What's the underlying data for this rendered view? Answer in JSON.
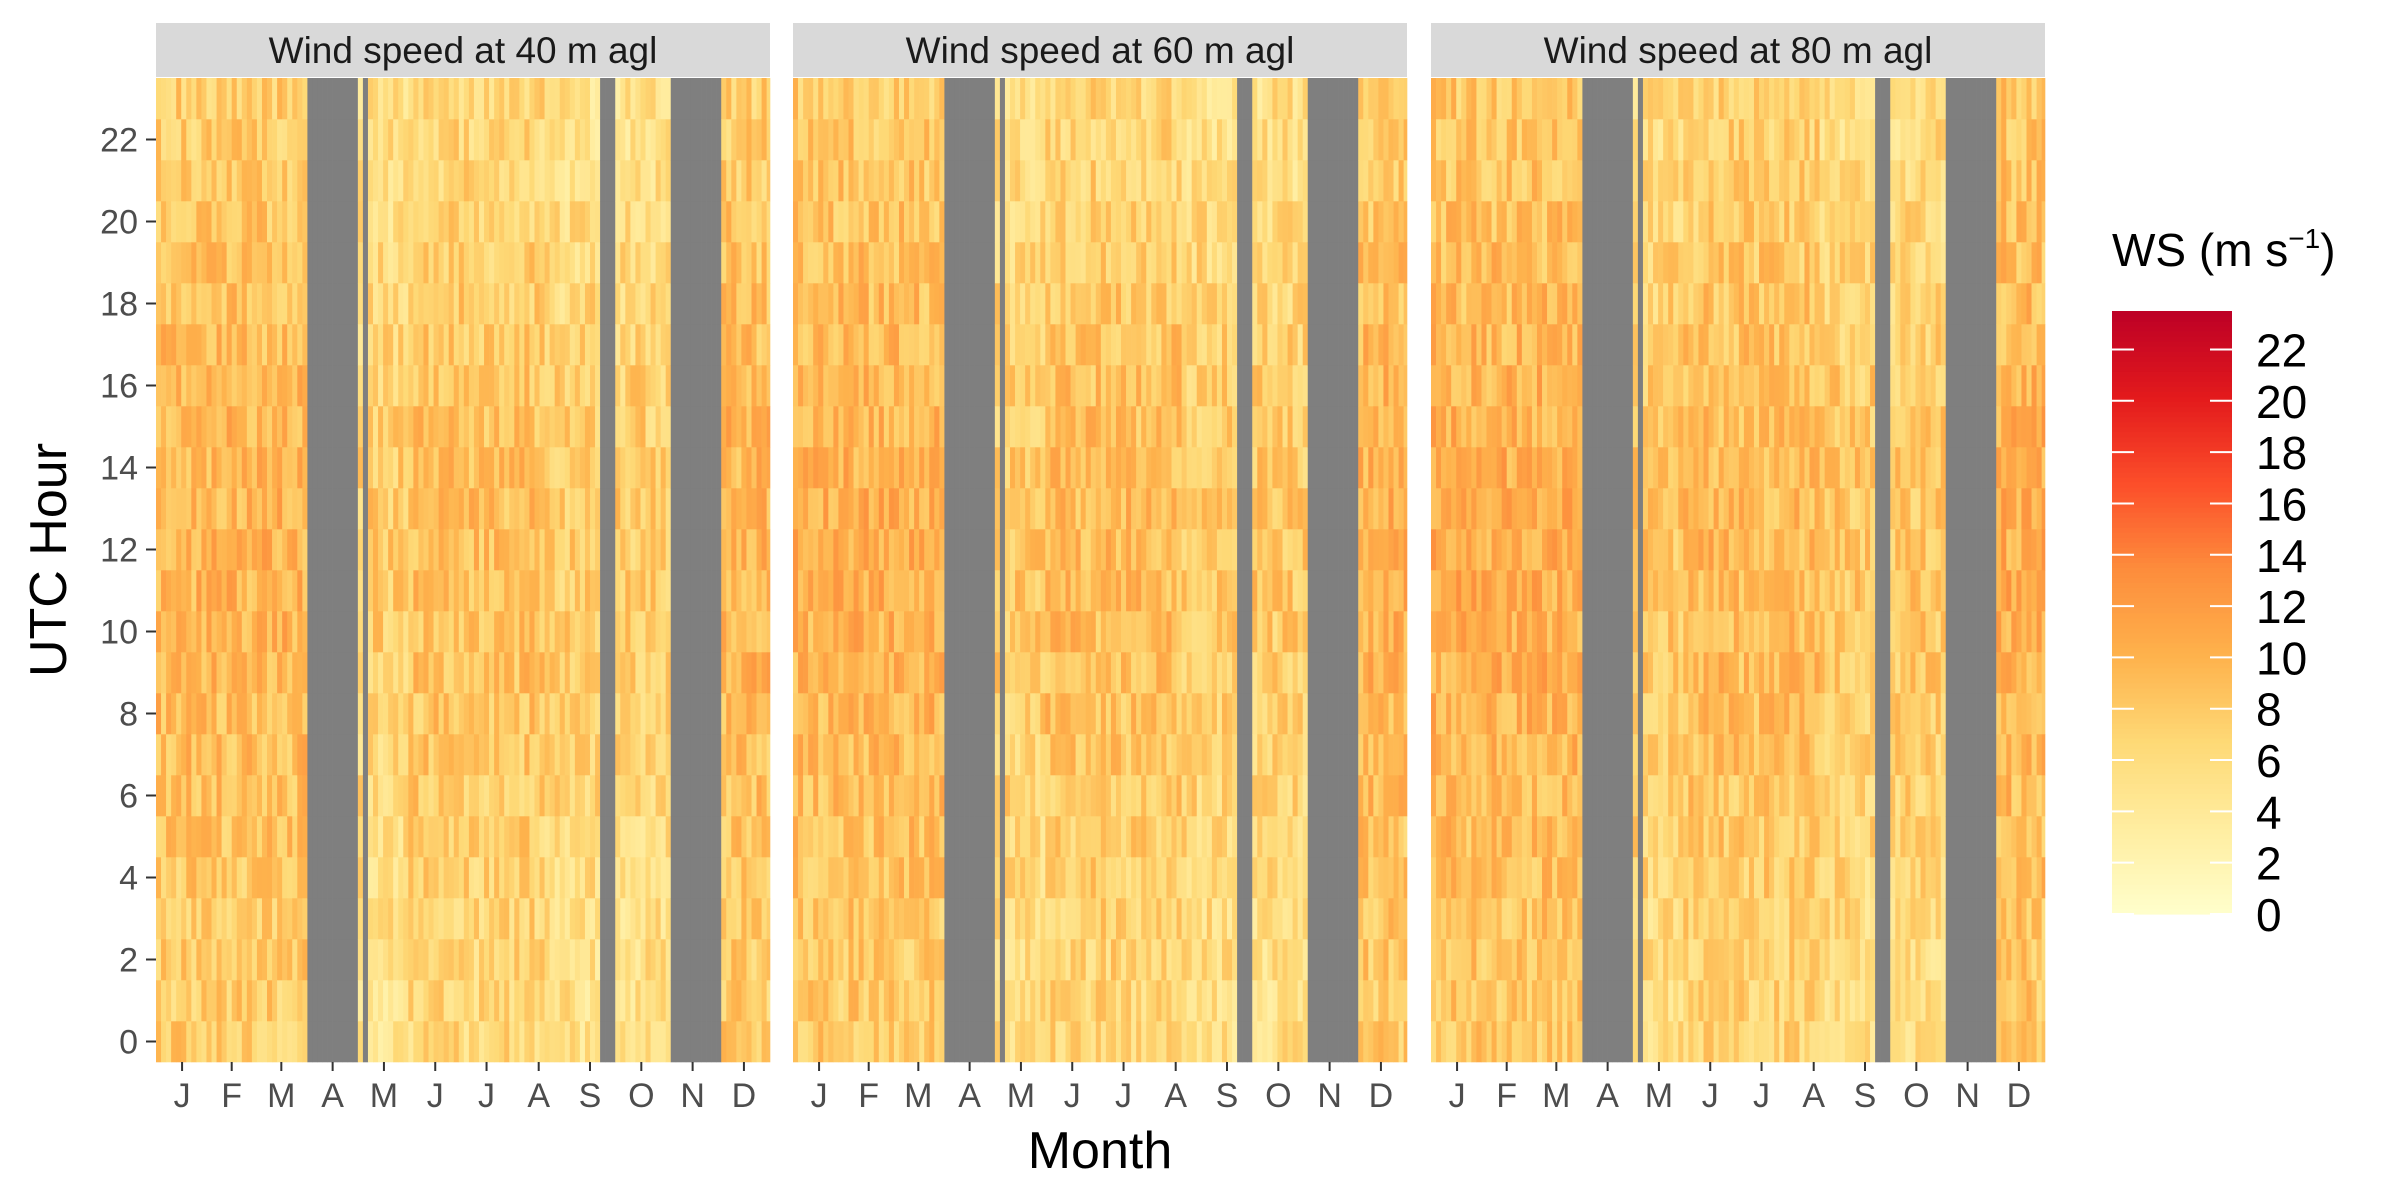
{
  "chart_data": {
    "type": "heatmap",
    "panels": [
      {
        "title": "Wind speed at 40 m agl",
        "missing_day_ranges": [
          [
            91,
            118
          ],
          [
            124,
            126
          ],
          [
            263,
            272
          ],
          [
            305,
            335
          ]
        ]
      },
      {
        "title": "Wind speed at 60 m agl",
        "missing_day_ranges": [
          [
            91,
            118
          ],
          [
            124,
            126
          ],
          [
            263,
            272
          ],
          [
            305,
            335
          ]
        ]
      },
      {
        "title": "Wind speed at 80 m agl",
        "missing_day_ranges": [
          [
            91,
            118
          ],
          [
            124,
            126
          ],
          [
            263,
            272
          ],
          [
            305,
            335
          ]
        ]
      }
    ],
    "x_tick_labels": [
      "J",
      "F",
      "M",
      "A",
      "M",
      "J",
      "J",
      "A",
      "S",
      "O",
      "N",
      "D"
    ],
    "y_ticks": [
      0,
      2,
      4,
      6,
      8,
      10,
      12,
      14,
      16,
      18,
      20,
      22
    ],
    "y_range": [
      -0.5,
      23.5
    ],
    "xlabel": "Month",
    "ylabel": "UTC Hour",
    "legend": {
      "title_main": "WS (m s",
      "title_sup": "−1",
      "title_close": ")",
      "ticks": [
        0,
        2,
        4,
        6,
        8,
        10,
        12,
        14,
        16,
        18,
        20,
        22
      ],
      "range": [
        0,
        23.5
      ],
      "placement": "right",
      "colors": [
        "#FFFFCC",
        "#FFEDA0",
        "#FED976",
        "#FEB24C",
        "#FD8D3C",
        "#FC4E2A",
        "#E31A1C",
        "#BD0026"
      ]
    },
    "panel_background": "#D9D9D9",
    "missing_color": "#7F7F7F",
    "grid": false
  }
}
